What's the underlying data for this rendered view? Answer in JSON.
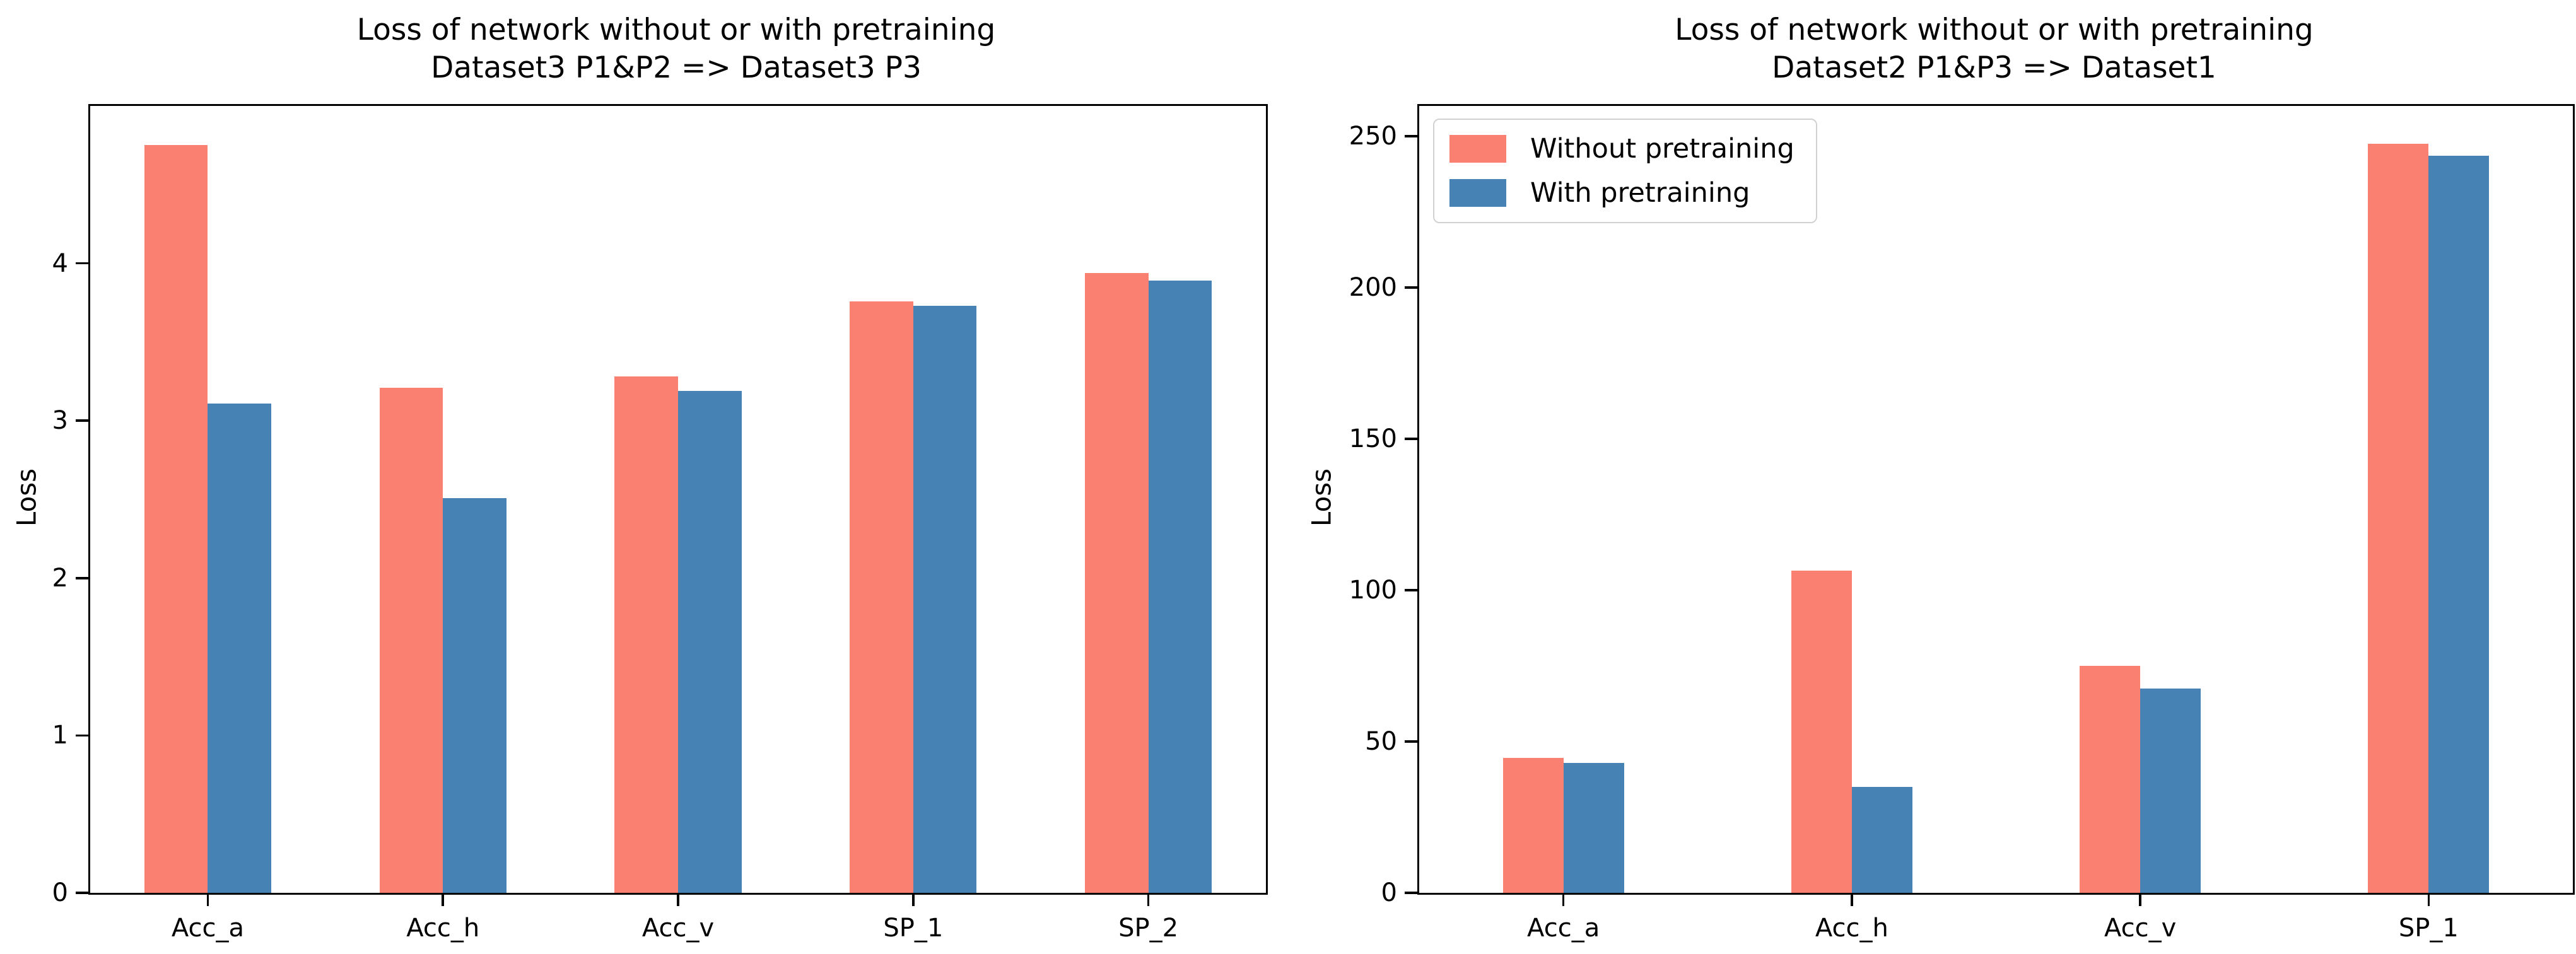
{
  "figure": {
    "background": "#ffffff",
    "text_color": "#000000"
  },
  "chart_data": [
    {
      "type": "bar",
      "title": "Loss of network without or with pretraining",
      "subtitle": "Dataset3 P1&P2 => Dataset3 P3",
      "categories": [
        "Acc_a",
        "Acc_h",
        "Acc_v",
        "SP_1",
        "SP_2"
      ],
      "series": [
        {
          "name": "Without pretraining",
          "color": "#FA8072",
          "values": [
            4.75,
            3.21,
            3.28,
            3.76,
            3.94
          ]
        },
        {
          "name": "With pretraining",
          "color": "#4682B4",
          "values": [
            3.11,
            2.51,
            3.19,
            3.73,
            3.89
          ]
        }
      ],
      "xlabel": "",
      "ylabel": "Loss",
      "yticks": [
        0,
        1,
        2,
        3,
        4
      ],
      "ylim": [
        0,
        5
      ],
      "grid": false,
      "legend_visible": false
    },
    {
      "type": "bar",
      "title": "Loss of network without or with pretraining",
      "subtitle": "Dataset2 P1&P3 => Dataset1",
      "categories": [
        "Acc_a",
        "Acc_h",
        "Acc_v",
        "SP_1"
      ],
      "series": [
        {
          "name": "Without pretraining",
          "color": "#FA8072",
          "values": [
            44.5,
            106.5,
            75,
            247.5
          ]
        },
        {
          "name": "With pretraining",
          "color": "#4682B4",
          "values": [
            43,
            35,
            67.5,
            243.5
          ]
        }
      ],
      "xlabel": "",
      "ylabel": "Loss",
      "yticks": [
        0,
        50,
        100,
        150,
        200,
        250
      ],
      "ylim": [
        0,
        260
      ],
      "grid": false,
      "legend_visible": true,
      "legend_position": "upper left"
    }
  ]
}
